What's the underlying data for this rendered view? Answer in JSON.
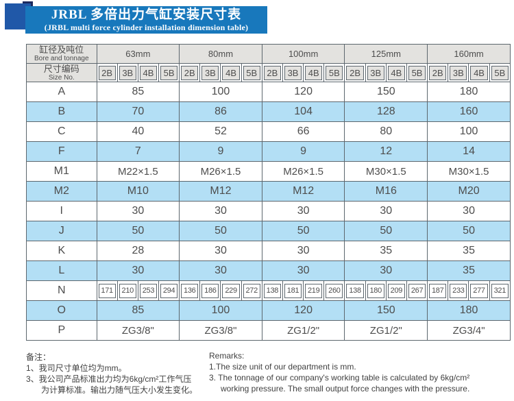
{
  "banner": {
    "title_zh": "JRBL 多倍出力气缸安装尺寸表",
    "title_en": "(JRBL multi force cylinder installation dimension table)"
  },
  "colors": {
    "banner_blue": "#1878bc",
    "deco_blue": "#2058a8",
    "deco_navy": "#1b2a5e",
    "row_highlight_blue": "#b3dff5",
    "header_gray": "#e3e2df",
    "grid_border": "#5c666d",
    "text_gray": "#4d4d4d"
  },
  "table": {
    "corner_top": {
      "zh": "缸径及吨位",
      "en": "Bore and tonnage"
    },
    "corner_bottom": {
      "zh": "尺寸编码",
      "en": "Size No."
    },
    "bores": [
      "63mm",
      "80mm",
      "100mm",
      "125mm",
      "160mm"
    ],
    "size_codes": [
      "2B",
      "3B",
      "4B",
      "5B"
    ],
    "rows": [
      {
        "label": "A",
        "values": [
          "85",
          "100",
          "120",
          "150",
          "180"
        ]
      },
      {
        "label": "B",
        "values": [
          "70",
          "86",
          "104",
          "128",
          "160"
        ]
      },
      {
        "label": "C",
        "values": [
          "40",
          "52",
          "66",
          "80",
          "100"
        ]
      },
      {
        "label": "F",
        "values": [
          "7",
          "9",
          "9",
          "12",
          "14"
        ]
      },
      {
        "label": "M1",
        "values": [
          "M22×1.5",
          "M26×1.5",
          "M26×1.5",
          "M30×1.5",
          "M30×1.5"
        ]
      },
      {
        "label": "M2",
        "values": [
          "M10",
          "M12",
          "M12",
          "M16",
          "M20"
        ]
      },
      {
        "label": "I",
        "values": [
          "30",
          "30",
          "30",
          "30",
          "30"
        ]
      },
      {
        "label": "J",
        "values": [
          "50",
          "50",
          "50",
          "50",
          "50"
        ]
      },
      {
        "label": "K",
        "values": [
          "28",
          "30",
          "30",
          "35",
          "35"
        ]
      },
      {
        "label": "L",
        "values": [
          "30",
          "30",
          "30",
          "30",
          "35"
        ]
      },
      {
        "label": "N",
        "per_size": true,
        "values": [
          [
            "171",
            "210",
            "253",
            "294"
          ],
          [
            "136",
            "186",
            "229",
            "272"
          ],
          [
            "138",
            "181",
            "219",
            "260"
          ],
          [
            "138",
            "180",
            "209",
            "267"
          ],
          [
            "187",
            "233",
            "277",
            "321"
          ]
        ]
      },
      {
        "label": "O",
        "values": [
          "85",
          "100",
          "120",
          "150",
          "180"
        ]
      },
      {
        "label": "P",
        "values": [
          "ZG3/8\"",
          "ZG3/8\"",
          "ZG1/2\"",
          "ZG1/2\"",
          "ZG3/4\""
        ]
      }
    ]
  },
  "remarks_zh": {
    "title": "备注：",
    "line1": "1、我司尺寸单位均为mm。",
    "line2": "3、我公司产品标准出力均为6kg/cm²工作气压",
    "line3": "为计算标准。输出力随气压大小发生变化。"
  },
  "remarks_en": {
    "title": "Remarks:",
    "line1": "1.The size unit of our department is mm.",
    "line2": "3. The tonnage of our company's working table is calculated by 6kg/cm²",
    "line3": "working pressure. The small output force changes with the pressure."
  }
}
